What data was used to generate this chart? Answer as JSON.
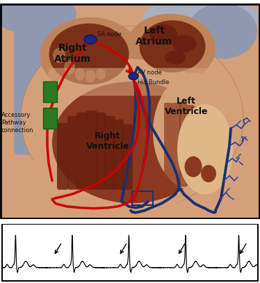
{
  "fig_width": 3.74,
  "fig_height": 4.07,
  "dpi": 100,
  "background_color": "#ffffff",
  "flesh_light": "#d4a07a",
  "flesh_mid": "#c0845a",
  "flesh_dark": "#a0603a",
  "chamber_dark": "#7a3018",
  "chamber_mid": "#8a3820",
  "vessel_gray": "#9098b0",
  "vessel_gray2": "#a8afc0",
  "muscle_dark": "#6a2010",
  "red_path": "#cc0000",
  "blue_path": "#1a3070",
  "blue_purkinje": "#2040a0",
  "green_block": "#2a7a20",
  "node_blue": "#1a2880",
  "sa_node_label": "SA node",
  "av_node_label": "AV node",
  "his_bundle_label": "His Bundle",
  "right_atrium_label": "Right\nAtrium",
  "left_atrium_label": "Left\nAtrium",
  "left_ventricle_label": "Left\nVentricle",
  "right_ventricle_label": "Right\nVentricle",
  "accessory_label": "Accessory\nPathway\nconnection"
}
